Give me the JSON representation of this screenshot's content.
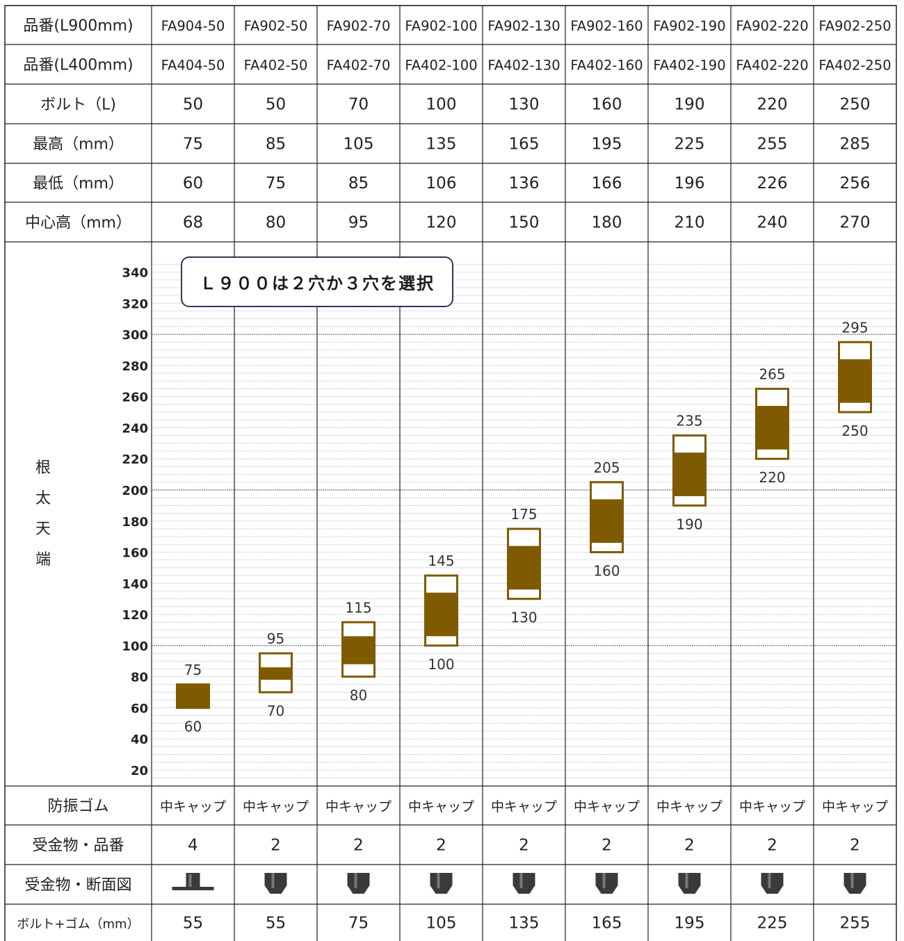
{
  "columns": [
    "FA904-50",
    "FA902-50",
    "FA902-70",
    "FA902-100",
    "FA902-130",
    "FA902-160",
    "FA902-190",
    "FA902-220",
    "FA902-250"
  ],
  "rows_top": [
    {
      "label": "品番(L900mm)",
      "values": [
        "FA904-50",
        "FA902-50",
        "FA902-70",
        "FA902-100",
        "FA902-130",
        "FA902-160",
        "FA902-190",
        "FA902-220",
        "FA902-250"
      ]
    },
    {
      "label": "品番(L400mm)",
      "values": [
        "FA404-50",
        "FA402-50",
        "FA402-70",
        "FA402-100",
        "FA402-130",
        "FA402-160",
        "FA402-190",
        "FA402-220",
        "FA402-250"
      ]
    },
    {
      "label": "ボルト（L)",
      "values": [
        "50",
        "50",
        "70",
        "100",
        "130",
        "160",
        "190",
        "220",
        "250"
      ]
    },
    {
      "label": "最高（mm）",
      "values": [
        "75",
        "85",
        "105",
        "135",
        "165",
        "195",
        "225",
        "255",
        "285"
      ]
    },
    {
      "label": "最低（mm）",
      "values": [
        "60",
        "75",
        "85",
        "106",
        "136",
        "166",
        "196",
        "226",
        "256"
      ]
    },
    {
      "label": "中心高（mm）",
      "values": [
        "68",
        "80",
        "95",
        "120",
        "150",
        "180",
        "210",
        "240",
        "270"
      ]
    }
  ],
  "rows_bottom": [
    {
      "label": "防振ゴム",
      "values": [
        "中キャップ",
        "中キャップ",
        "中キャップ",
        "中キャップ",
        "中キャップ",
        "中キャップ",
        "中キャップ",
        "中キャップ",
        "中キャップ"
      ]
    },
    {
      "label": "受金物・品番",
      "values": [
        "4",
        "2",
        "2",
        "2",
        "2",
        "2",
        "2",
        "2",
        "2"
      ]
    },
    {
      "label": "受金物・断面図",
      "icons": [
        "flat-bracket-icon",
        "cap-bracket-icon",
        "cap-bracket-icon",
        "cap-bracket-icon",
        "cap-bracket-icon",
        "cap-bracket-icon",
        "cap-bracket-icon",
        "cap-bracket-icon",
        "cap-bracket-icon"
      ]
    },
    {
      "label": "ボルト+ゴム（mm）",
      "values": [
        "55",
        "55",
        "75",
        "105",
        "135",
        "165",
        "195",
        "225",
        "255"
      ]
    }
  ],
  "note": "Ｌ９００は２穴か３穴を選択",
  "chart_data": {
    "type": "bar",
    "ylabel": "根太天端",
    "ylim": [
      10,
      350
    ],
    "yticks": [
      20,
      40,
      60,
      80,
      100,
      120,
      140,
      160,
      180,
      200,
      220,
      240,
      260,
      280,
      300,
      320,
      340
    ],
    "major_gridlines": [
      100,
      200,
      300
    ],
    "categories": [
      "FA904-50",
      "FA902-50",
      "FA902-70",
      "FA902-100",
      "FA902-130",
      "FA902-160",
      "FA902-190",
      "FA902-220",
      "FA902-250"
    ],
    "range_low": [
      60,
      70,
      80,
      100,
      130,
      160,
      190,
      220,
      250
    ],
    "range_high": [
      75,
      95,
      115,
      145,
      175,
      205,
      235,
      265,
      295
    ],
    "fill_low": [
      60,
      78,
      88,
      106,
      136,
      166,
      196,
      226,
      256
    ],
    "fill_high": [
      75,
      86,
      106,
      134,
      164,
      194,
      224,
      254,
      284
    ],
    "low_labels": [
      "60",
      "70",
      "80",
      "100",
      "130",
      "160",
      "190",
      "220",
      "250"
    ],
    "high_labels": [
      "75",
      "95",
      "115",
      "145",
      "175",
      "205",
      "235",
      "265",
      "295"
    ],
    "colors": {
      "bar": "#7f5a00",
      "grid_minor": "#c4c4c4",
      "grid_major": "#555555",
      "border": "#222222"
    }
  }
}
